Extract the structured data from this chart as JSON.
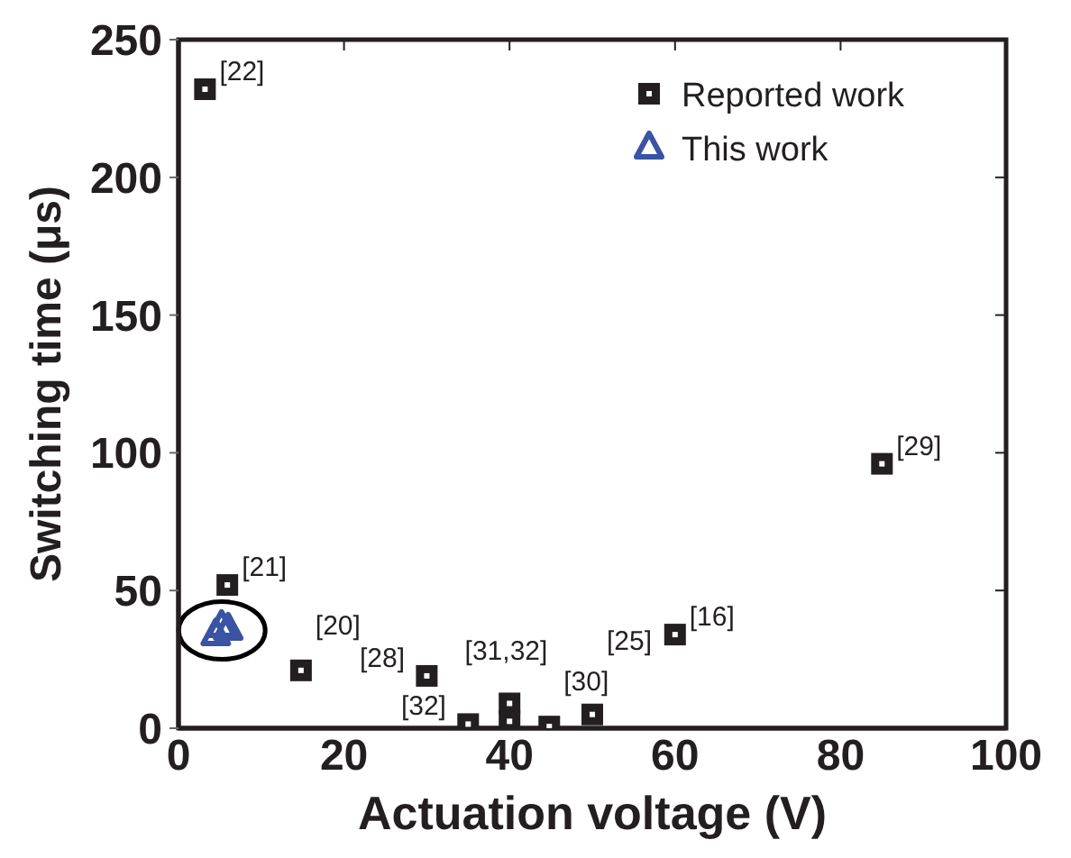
{
  "chart_data": {
    "type": "scatter",
    "xlabel": "Actuation voltage (V)",
    "ylabel": "Switching time (μs)",
    "xlim": [
      0,
      100
    ],
    "xticks": [
      0,
      20,
      40,
      60,
      80,
      100
    ],
    "ylim": [
      0,
      250
    ],
    "yticks": [
      0,
      50,
      100,
      150,
      200,
      250
    ],
    "legend": "top right",
    "series": [
      {
        "name": "Reported work",
        "color": "#231f20",
        "marker": "square",
        "x": [
          3.2,
          5.9,
          14.8,
          30,
          35,
          40,
          40,
          44.8,
          50,
          60,
          85
        ],
        "values": [
          232,
          52,
          21,
          19,
          1.5,
          9,
          2.5,
          0.6,
          5,
          34,
          96
        ]
      },
      {
        "name": "This work",
        "color": "#3a53a4",
        "marker": "triangle",
        "x": [
          4.5,
          5.2,
          6
        ],
        "values": [
          34,
          37,
          36
        ]
      }
    ],
    "annotations": [
      {
        "text": "[22]",
        "x": 3.2,
        "y": 232
      },
      {
        "text": "[21]",
        "x": 5.9,
        "y": 52
      },
      {
        "text": "[20]",
        "x": 14.8,
        "y": 21
      },
      {
        "text": "[28]",
        "x": 30,
        "y": 19
      },
      {
        "text": "[32]",
        "x": 35,
        "y": 1.5
      },
      {
        "text": "[31,32]",
        "x": 40,
        "y": 9
      },
      {
        "text": "[30]",
        "x": 44.8,
        "y": 0.6
      },
      {
        "text": "[25]",
        "x": 50,
        "y": 5
      },
      {
        "text": "[16]",
        "x": 60,
        "y": 34
      },
      {
        "text": "[29]",
        "x": 85,
        "y": 96
      }
    ]
  }
}
